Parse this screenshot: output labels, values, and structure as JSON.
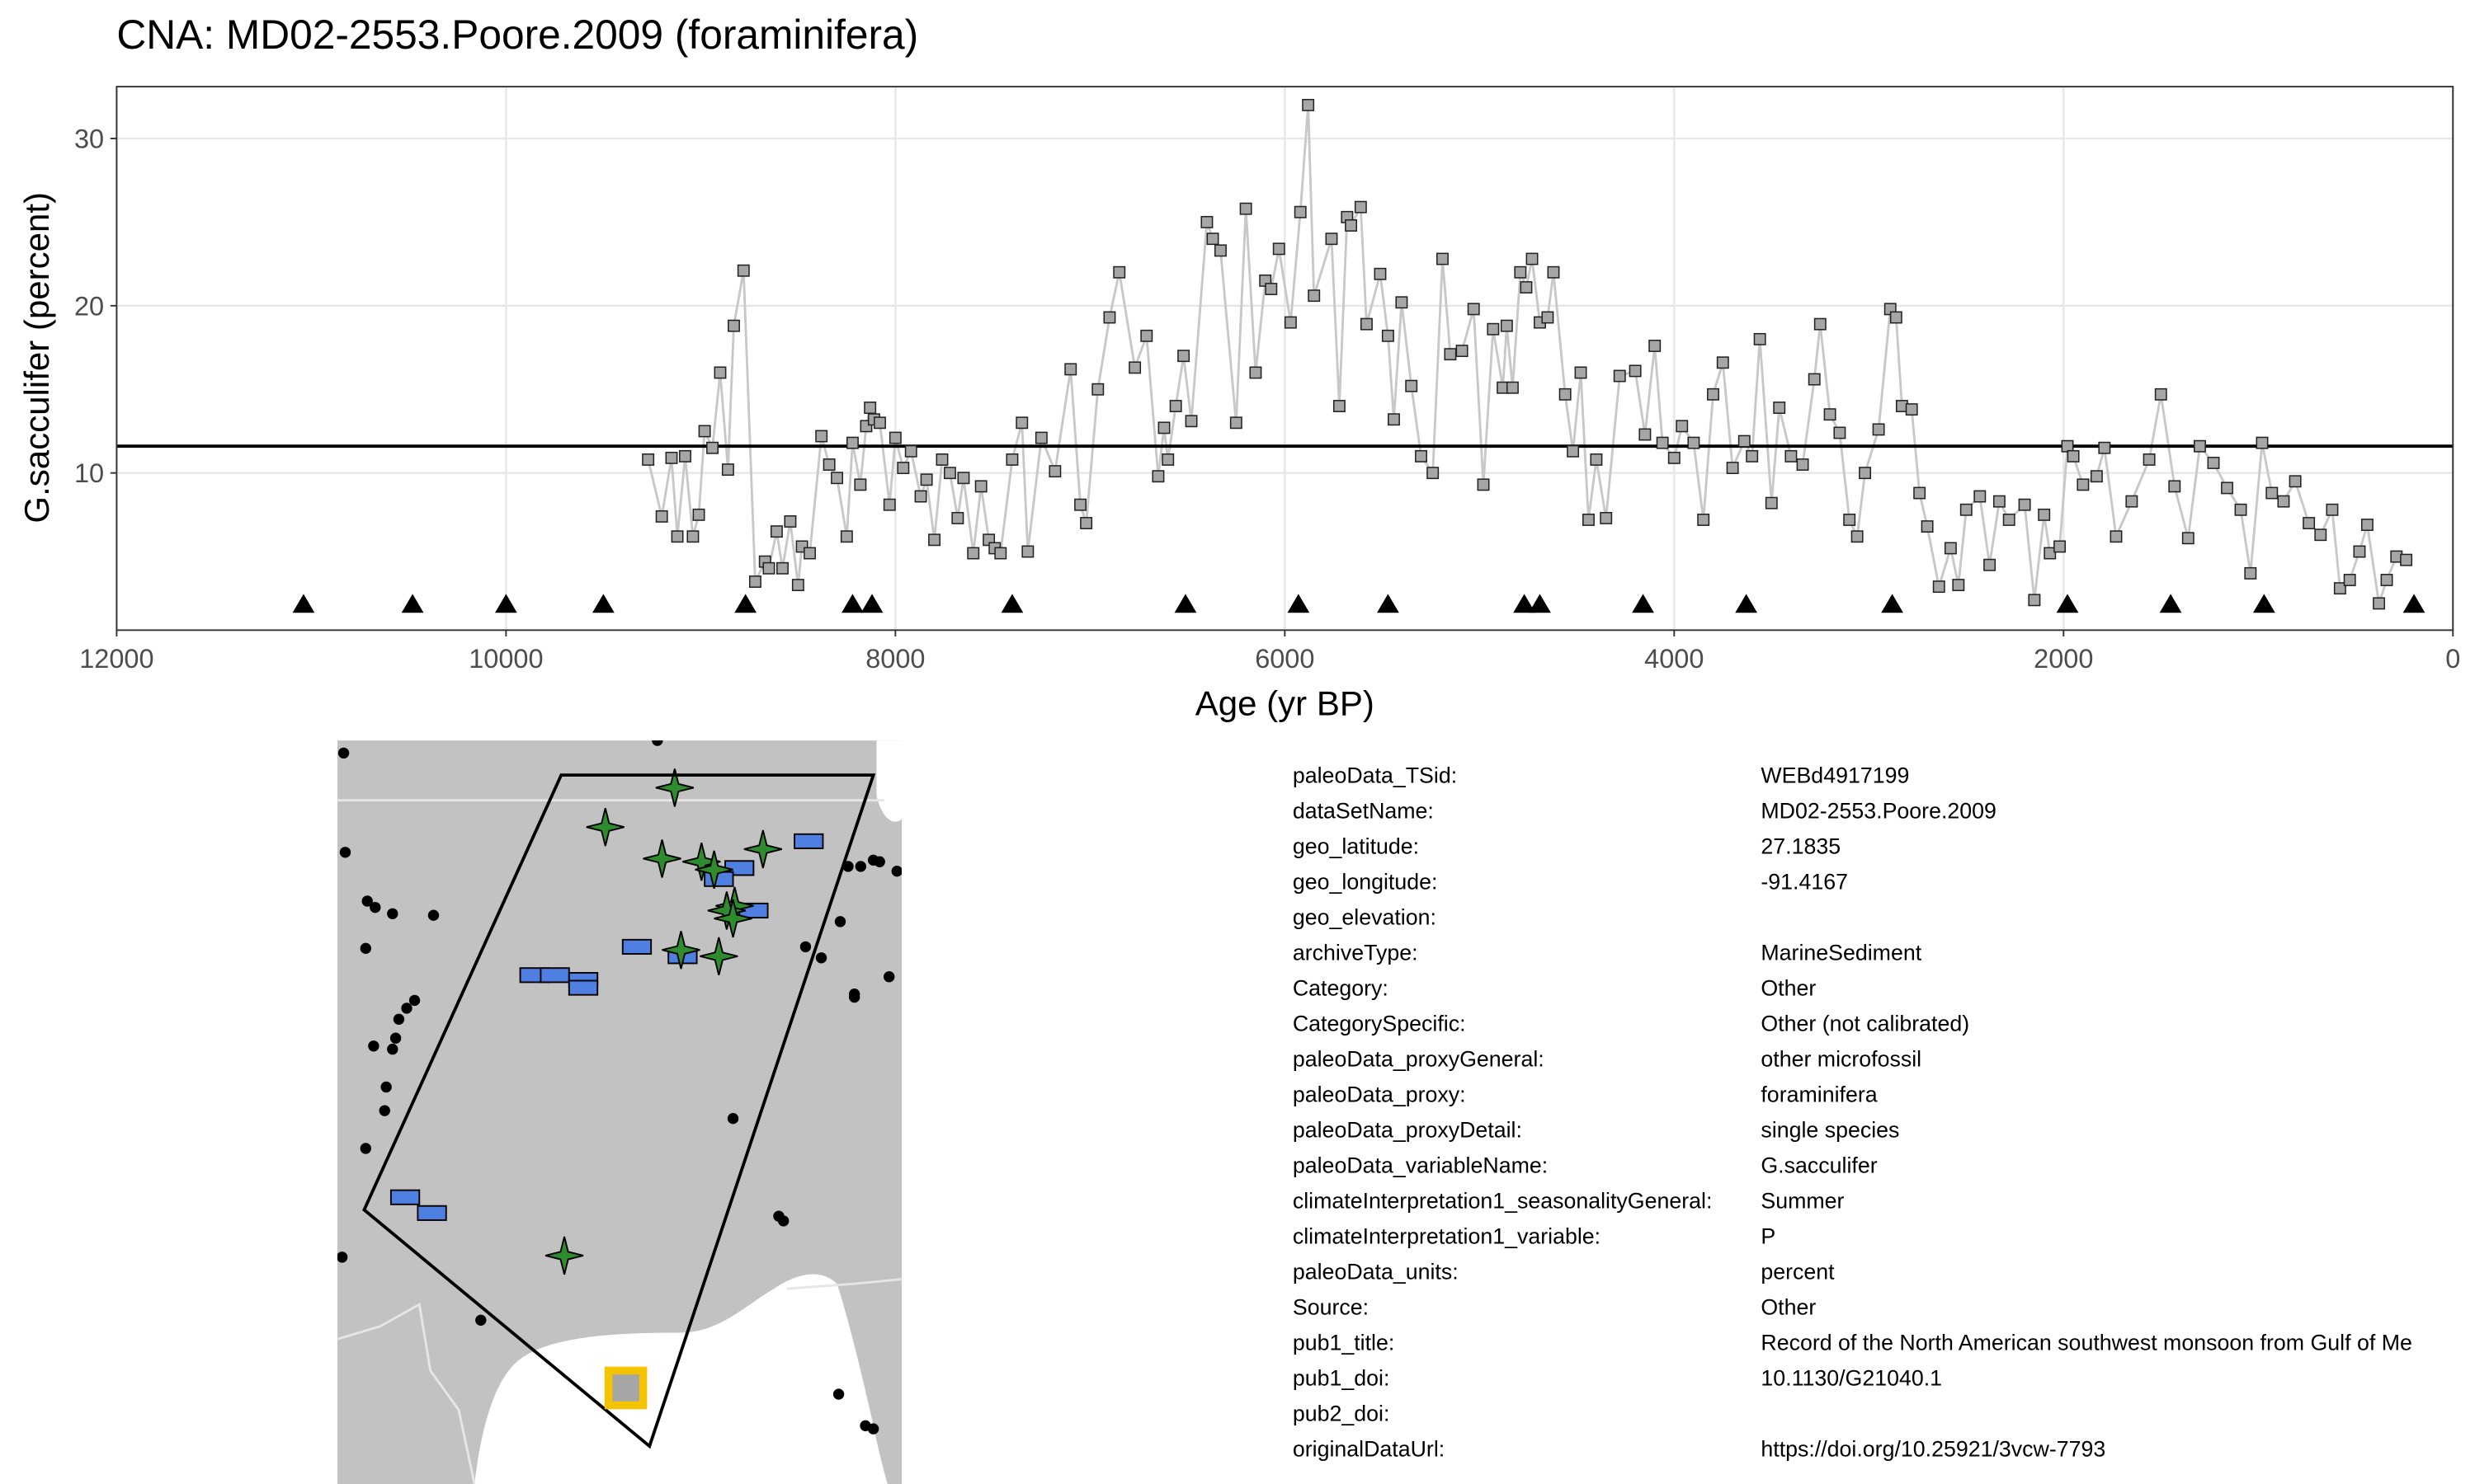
{
  "chart_data": {
    "type": "line",
    "title": "CNA: MD02-2553.Poore.2009 (foraminifera)",
    "x_label": "Age (yr BP)",
    "y_label": "G.sacculifer (percent)",
    "x": [
      9270,
      9200,
      9150,
      9120,
      9080,
      9040,
      9010,
      8980,
      8940,
      8900,
      8860,
      8830,
      8780,
      8720,
      8670,
      8650,
      8610,
      8580,
      8540,
      8500,
      8480,
      8440,
      8380,
      8340,
      8300,
      8250,
      8220,
      8180,
      8150,
      8130,
      8110,
      8080,
      8030,
      8000,
      7960,
      7920,
      7870,
      7840,
      7800,
      7760,
      7720,
      7680,
      7650,
      7600,
      7560,
      7520,
      7490,
      7460,
      7400,
      7350,
      7320,
      7250,
      7180,
      7100,
      7050,
      7020,
      6960,
      6900,
      6850,
      6770,
      6710,
      6650,
      6620,
      6600,
      6560,
      6520,
      6480,
      6400,
      6370,
      6330,
      6250,
      6200,
      6150,
      6100,
      6070,
      6030,
      5970,
      5920,
      5880,
      5850,
      5760,
      5720,
      5680,
      5660,
      5610,
      5580,
      5510,
      5470,
      5440,
      5400,
      5350,
      5300,
      5240,
      5190,
      5150,
      5090,
      5030,
      4980,
      4930,
      4880,
      4860,
      4830,
      4790,
      4760,
      4730,
      4690,
      4650,
      4620,
      4560,
      4520,
      4480,
      4440,
      4400,
      4350,
      4280,
      4200,
      4150,
      4100,
      4060,
      4000,
      3960,
      3900,
      3850,
      3800,
      3750,
      3700,
      3640,
      3600,
      3560,
      3500,
      3460,
      3400,
      3340,
      3280,
      3250,
      3200,
      3150,
      3100,
      3060,
      3020,
      2950,
      2890,
      2860,
      2830,
      2780,
      2740,
      2700,
      2640,
      2580,
      2540,
      2500,
      2430,
      2380,
      2330,
      2280,
      2200,
      2150,
      2100,
      2070,
      2020,
      1980,
      1950,
      1900,
      1830,
      1790,
      1730,
      1650,
      1560,
      1500,
      1430,
      1360,
      1300,
      1230,
      1160,
      1090,
      1040,
      980,
      930,
      870,
      810,
      740,
      680,
      620,
      580,
      530,
      480,
      440,
      380,
      340,
      290,
      240
    ],
    "values": [
      10.8,
      7.4,
      10.9,
      6.2,
      11,
      6.2,
      7.5,
      12.5,
      11.5,
      16,
      10.2,
      18.8,
      22.1,
      3.5,
      4.7,
      4.3,
      6.5,
      4.3,
      7.1,
      3.3,
      5.6,
      5.2,
      12.2,
      10.5,
      9.7,
      6.2,
      11.8,
      9.3,
      12.8,
      13.9,
      13.2,
      13,
      8.1,
      12.1,
      10.3,
      11.3,
      8.6,
      9.6,
      6,
      10.8,
      10,
      7.3,
      9.7,
      5.2,
      9.2,
      6,
      5.5,
      5.2,
      10.8,
      13,
      5.3,
      12.1,
      10.1,
      16.2,
      8.1,
      7,
      15,
      19.3,
      22,
      16.3,
      18.2,
      9.8,
      12.7,
      10.8,
      14,
      17,
      13.1,
      25,
      24,
      23.3,
      13,
      25.8,
      16,
      21.5,
      21,
      23.4,
      19,
      25.6,
      32,
      20.6,
      24,
      14,
      25.3,
      24.8,
      25.9,
      18.9,
      21.9,
      18.2,
      13.2,
      20.2,
      15.2,
      11,
      10,
      22.8,
      17.1,
      17.3,
      19.8,
      9.3,
      18.6,
      15.1,
      18.8,
      15.1,
      22,
      21.1,
      22.8,
      19,
      19.3,
      22,
      14.7,
      11.3,
      16,
      7.2,
      10.8,
      7.3,
      15.8,
      16.1,
      12.3,
      17.6,
      11.8,
      10.9,
      12.8,
      11.8,
      7.2,
      14.7,
      16.6,
      10.3,
      11.9,
      11,
      18,
      8.2,
      13.9,
      11,
      10.5,
      15.6,
      18.9,
      13.5,
      12.4,
      7.2,
      6.2,
      10,
      12.6,
      19.8,
      19.3,
      14,
      13.8,
      8.8,
      6.8,
      3.2,
      5.5,
      3.3,
      7.8,
      8.6,
      4.5,
      8.3,
      7.2,
      8.1,
      2.4,
      7.5,
      5.2,
      5.6,
      11.6,
      11,
      9.3,
      9.8,
      11.5,
      6.2,
      8.3,
      10.8,
      14.7,
      9.2,
      6.1,
      11.6,
      10.6,
      9.1,
      7.8,
      4,
      11.8,
      8.8,
      8.3,
      9.5,
      7,
      6.3,
      7.8,
      3.1,
      3.6,
      5.3,
      6.9,
      2.2,
      3.6,
      5,
      4.8
    ],
    "line_color": "#c8c8c8",
    "marker_color": "#a6a6a6",
    "xlim": [
      12000,
      0
    ],
    "ylim": [
      0.6,
      33.1
    ],
    "xticks": [
      12000,
      10000,
      8000,
      6000,
      4000,
      2000,
      0
    ],
    "yticks": [
      10,
      20,
      30
    ],
    "grid": true,
    "mean_line": 11.6,
    "age_controls": [
      11040,
      10480,
      10000,
      9500,
      8770,
      8220,
      8120,
      7400,
      6510,
      5930,
      5470,
      4770,
      4690,
      4160,
      3630,
      2880,
      1980,
      1450,
      970,
      200
    ]
  },
  "table": {
    "rows": [
      [
        "paleoData_TSid:",
        "WEBd4917199"
      ],
      [
        "dataSetName:",
        "MD02-2553.Poore.2009"
      ],
      [
        "geo_latitude:",
        "27.1835"
      ],
      [
        "geo_longitude:",
        "-91.4167"
      ],
      [
        "geo_elevation:"
      ],
      [
        "archiveType:",
        "MarineSediment"
      ],
      [
        "Category:",
        "Other"
      ],
      [
        "CategorySpecific:",
        "Other (not calibrated)"
      ],
      [
        "paleoData_proxyGeneral:",
        "other microfossil"
      ],
      [
        "paleoData_proxy:",
        "foraminifera"
      ],
      [
        "paleoData_proxyDetail:",
        "single species"
      ],
      [
        "paleoData_variableName:",
        "G.sacculifer"
      ],
      [
        "climateInterpretation1_seasonalityGeneral:",
        "Summer"
      ],
      [
        "climateInterpretation1_variable:",
        "P"
      ],
      [
        "paleoData_units:",
        "percent"
      ],
      [
        "Source:",
        "Other"
      ],
      [
        "pub1_title:",
        "Record of the North American southwest monsoon from Gulf of Me"
      ],
      [
        "pub1_doi:",
        "10.1130/G21040.1"
      ],
      [
        "pub2_doi:"
      ],
      [
        "originalDataUrl:",
        "https://doi.org/10.25921/3vcw-7793"
      ]
    ]
  }
}
